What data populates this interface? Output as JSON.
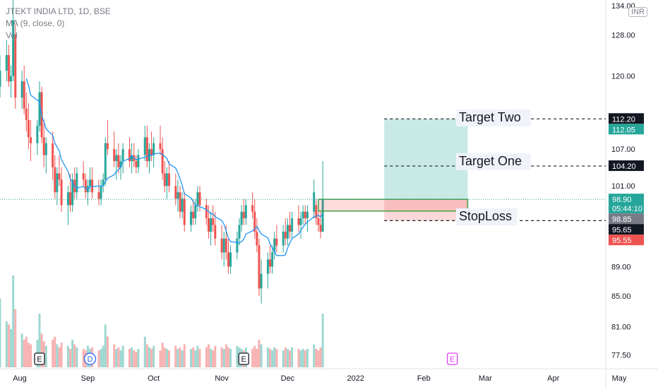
{
  "header": {
    "symbol": "JTEKT INDIA LTD, 1D, BSE",
    "indicator": "MA (9, close, 0)",
    "volume": "Vol",
    "currency": "INR"
  },
  "annotations": {
    "target_two": "Target Two",
    "target_one": "Target One",
    "stoploss": "StopLoss"
  },
  "events": [
    {
      "label": "E",
      "x": "2021-08-10",
      "color": "#131722"
    },
    {
      "label": "D",
      "x": "2021-09-02",
      "color": "#2962ff"
    },
    {
      "label": "E",
      "x": "2021-11-11",
      "color": "#131722"
    },
    {
      "label": "E",
      "x": "2022-02-14",
      "color": "#e040fb"
    }
  ],
  "colors": {
    "up": "#26a69a",
    "down": "#ef5350",
    "ma": "#2196f3",
    "target_zone": "#c8e9e4",
    "stop_zone": "#fbd9d9",
    "grid": "#f0f3fa"
  },
  "chart_data": {
    "type": "candlestick",
    "y_axis": {
      "scale": "log",
      "ylim": [
        76.0,
        134.0
      ],
      "ticks": [
        "77.50",
        "81.00",
        "85.00",
        "89.00",
        "95.00",
        "101.00",
        "107.00",
        "112.00",
        "120.00",
        "128.00",
        "134.00"
      ]
    },
    "x_axis": {
      "ticks": [
        {
          "label": "Aug",
          "x": "2021-08-01"
        },
        {
          "label": "Sep",
          "x": "2021-09-01"
        },
        {
          "label": "Oct",
          "x": "2021-10-01"
        },
        {
          "label": "Nov",
          "x": "2021-11-01"
        },
        {
          "label": "Dec",
          "x": "2021-12-01"
        },
        {
          "label": "2022",
          "x": "2022-01-01"
        },
        {
          "label": "Feb",
          "x": "2022-02-01"
        },
        {
          "label": "Mar",
          "x": "2022-03-01"
        },
        {
          "label": "Apr",
          "x": "2022-04-01"
        },
        {
          "label": "May",
          "x": "2022-05-01"
        }
      ]
    },
    "price_labels": [
      {
        "value": "112.20",
        "y": 112.2,
        "bg": "#131722"
      },
      {
        "value": "112.05",
        "y": 112.05,
        "bg": "#26a69a"
      },
      {
        "value": "104.20",
        "y": 104.2,
        "bg": "#131722"
      },
      {
        "value": "98.90",
        "sub": "05:44:10",
        "y": 98.9,
        "bg": "#26a69a"
      },
      {
        "value": "98.85",
        "y": 98.85,
        "bg": "#787b86"
      },
      {
        "value": "95.65",
        "y": 95.65,
        "bg": "#131722"
      },
      {
        "value": "95.55",
        "y": 95.55,
        "bg": "#ef5350"
      }
    ],
    "levels": {
      "target_two": 112.2,
      "target_one": 104.2,
      "entry": 98.85,
      "stoploss": 95.65,
      "last": 98.9
    },
    "entry_box": {
      "x_start": "2021-12-15",
      "x_end": "2022-02-21",
      "top": 98.9,
      "bottom": 97.1
    },
    "target_zone": {
      "x_start": "2022-01-14",
      "x_end": "2022-02-21",
      "top": 112.2,
      "bottom": 98.85
    },
    "stop_zone": {
      "x_start": "2022-01-14",
      "x_end": "2022-02-21",
      "top": 98.85,
      "bottom": 95.65
    },
    "series": [
      {
        "type": "candles",
        "start": "2021-07-23",
        "ohlc": [
          [
            118,
            124,
            116,
            121
          ],
          [
            121,
            127,
            119,
            124
          ],
          [
            124,
            126,
            118,
            119
          ],
          [
            119,
            122,
            116,
            120
          ],
          [
            120,
            136,
            119,
            131
          ],
          [
            128,
            130,
            114,
            116
          ],
          [
            116,
            121,
            114,
            119
          ],
          [
            119,
            122,
            113,
            114
          ],
          [
            114,
            117,
            110,
            112
          ],
          [
            112,
            115,
            107,
            109
          ],
          [
            109,
            112,
            105,
            108
          ],
          [
            108,
            112,
            106,
            111
          ],
          [
            111,
            119,
            110,
            117
          ],
          [
            117,
            118,
            108,
            109
          ],
          [
            109,
            112,
            104,
            106
          ],
          [
            106,
            109,
            103,
            108
          ],
          [
            108,
            110,
            102,
            104
          ],
          [
            104,
            106,
            99,
            100
          ],
          [
            100,
            104,
            98,
            103
          ],
          [
            103,
            106,
            101,
            102
          ],
          [
            102,
            104,
            97,
            98
          ],
          [
            98,
            101,
            95,
            100
          ],
          [
            100,
            103,
            97,
            98
          ],
          [
            98,
            103,
            97,
            102
          ],
          [
            102,
            104,
            99,
            100
          ],
          [
            100,
            104,
            99,
            103
          ],
          [
            103,
            105,
            101,
            102
          ],
          [
            102,
            103,
            99,
            100
          ],
          [
            100,
            102,
            98,
            101
          ],
          [
            101,
            104,
            100,
            102
          ],
          [
            102,
            104,
            99,
            100
          ],
          [
            100,
            102,
            98,
            99
          ],
          [
            99,
            102,
            98,
            101
          ],
          [
            101,
            103,
            100,
            102
          ],
          [
            102,
            109,
            101,
            108
          ],
          [
            108,
            112,
            106,
            107
          ],
          [
            107,
            110,
            104,
            105
          ],
          [
            105,
            107,
            102,
            106
          ],
          [
            106,
            108,
            103,
            104
          ],
          [
            104,
            106,
            102,
            105
          ],
          [
            105,
            108,
            103,
            107
          ],
          [
            107,
            109,
            104,
            105
          ],
          [
            105,
            108,
            103,
            106
          ],
          [
            106,
            108,
            104,
            105
          ],
          [
            105,
            106,
            103,
            104
          ],
          [
            104,
            107,
            103,
            106
          ],
          [
            106,
            111,
            105,
            109
          ],
          [
            109,
            111,
            104,
            105
          ],
          [
            105,
            108,
            103,
            107
          ],
          [
            107,
            110,
            105,
            106
          ],
          [
            106,
            109,
            104,
            108
          ],
          [
            108,
            111,
            106,
            107
          ],
          [
            107,
            109,
            102,
            103
          ],
          [
            103,
            105,
            100,
            101
          ],
          [
            101,
            104,
            99,
            103
          ],
          [
            103,
            105,
            100,
            101
          ],
          [
            101,
            103,
            98,
            99
          ],
          [
            99,
            102,
            97,
            100
          ],
          [
            100,
            101,
            96,
            97
          ],
          [
            97,
            100,
            96,
            99
          ],
          [
            99,
            100,
            94,
            95
          ],
          [
            95,
            98,
            94,
            97
          ],
          [
            97,
            99,
            95,
            96
          ],
          [
            96,
            99,
            95,
            98
          ],
          [
            98,
            101,
            97,
            100
          ],
          [
            100,
            101,
            97,
            98
          ],
          [
            98,
            99,
            95,
            96
          ],
          [
            96,
            98,
            93,
            94
          ],
          [
            94,
            97,
            92,
            96
          ],
          [
            96,
            98,
            94,
            95
          ],
          [
            95,
            97,
            92,
            93
          ],
          [
            93,
            95,
            90,
            91
          ],
          [
            91,
            94,
            89,
            93
          ],
          [
            93,
            95,
            90,
            91
          ],
          [
            91,
            93,
            88,
            89
          ],
          [
            89,
            92,
            88,
            91
          ],
          [
            91,
            94,
            90,
            93
          ],
          [
            93,
            96,
            92,
            95
          ],
          [
            95,
            98,
            94,
            97
          ],
          [
            97,
            99,
            95,
            96
          ],
          [
            96,
            99,
            95,
            98
          ],
          [
            98,
            100,
            96,
            97
          ],
          [
            97,
            99,
            93,
            94
          ],
          [
            94,
            96,
            91,
            92
          ],
          [
            92,
            93,
            85,
            86
          ],
          [
            86,
            90,
            84,
            88
          ],
          [
            88,
            91,
            86,
            90
          ],
          [
            90,
            92,
            88,
            89
          ],
          [
            89,
            92,
            88,
            91
          ],
          [
            91,
            94,
            90,
            93
          ],
          [
            93,
            95,
            91,
            92
          ],
          [
            92,
            95,
            91,
            94
          ],
          [
            94,
            96,
            92,
            93
          ],
          [
            93,
            96,
            92,
            95
          ],
          [
            95,
            97,
            93,
            94
          ],
          [
            94,
            97,
            93,
            96
          ],
          [
            96,
            98,
            94,
            95
          ],
          [
            95,
            97,
            93,
            96
          ],
          [
            96,
            98,
            95,
            97
          ],
          [
            97,
            98,
            95,
            96
          ],
          [
            96,
            98,
            94,
            97
          ],
          [
            97,
            102,
            96,
            100
          ],
          [
            98,
            99,
            95,
            96
          ],
          [
            96,
            98,
            94,
            95
          ],
          [
            95,
            97,
            93,
            94
          ],
          [
            94,
            105,
            94,
            99
          ]
        ]
      },
      {
        "type": "volume",
        "values": [
          45,
          30,
          28,
          25,
          60,
          38,
          22,
          18,
          20,
          16,
          15,
          18,
          35,
          22,
          17,
          14,
          18,
          20,
          15,
          13,
          16,
          14,
          12,
          18,
          15,
          13,
          12,
          11,
          14,
          12,
          13,
          11,
          12,
          14,
          28,
          20,
          15,
          12,
          13,
          11,
          14,
          12,
          13,
          11,
          10,
          12,
          20,
          15,
          13,
          12,
          14,
          11,
          16,
          13,
          12,
          11,
          14,
          12,
          13,
          11,
          15,
          12,
          13,
          11,
          14,
          12,
          13,
          15,
          12,
          11,
          14,
          13,
          12,
          15,
          13,
          12,
          14,
          13,
          12,
          11,
          13,
          12,
          14,
          12,
          18,
          15,
          13,
          12,
          11,
          13,
          12,
          11,
          13,
          12,
          11,
          13,
          12,
          11,
          12,
          11,
          12,
          15,
          12,
          11,
          13,
          35
        ]
      },
      {
        "type": "ma",
        "name": "MA (9, close, 0)",
        "period": 9
      }
    ]
  }
}
